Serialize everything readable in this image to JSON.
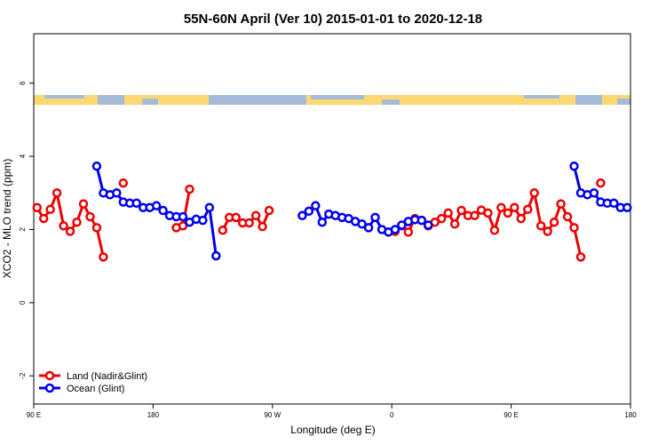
{
  "chart_data": {
    "type": "line",
    "title": "55N-60N April (Ver 10)   2015-01-01 to 2020-12-18",
    "x_label": "Longitude (deg E)",
    "y_label": "XCO2 - MLO trend (ppm)",
    "x": [
      92.5,
      97.5,
      102.5,
      107.5,
      112.5,
      117.5,
      122.5,
      127.5,
      132.5,
      137.5,
      142.5,
      147.5,
      152.5,
      157.5,
      162.5,
      167.5,
      172.5,
      177.5,
      182.5,
      187.5,
      192.5,
      197.5,
      202.5,
      207.5,
      212.5,
      217.5,
      222.5,
      227.5,
      232.5,
      237.5,
      242.5,
      247.5,
      252.5,
      257.5,
      262.5,
      267.5,
      272.5,
      277.5,
      282.5,
      287.5,
      292.5,
      297.5,
      302.5,
      307.5,
      312.5,
      317.5,
      322.5,
      327.5,
      332.5,
      337.5,
      342.5,
      347.5,
      352.5,
      357.5,
      362.5,
      367.5,
      372.5,
      377.5,
      382.5,
      387.5,
      392.5,
      397.5,
      402.5,
      407.5,
      412.5,
      417.5,
      422.5,
      427.5,
      432.5,
      437.5,
      442.5,
      447.5,
      452.5,
      457.5,
      462.5,
      467.5,
      472.5,
      477.5,
      482.5,
      487.5,
      492.5,
      497.5,
      502.5,
      507.5,
      512.5,
      517.5,
      522.5,
      527.5,
      532.5,
      537.5
    ],
    "xlim": [
      90,
      540
    ],
    "xticks": [
      {
        "value": 90,
        "label": "90 E"
      },
      {
        "value": 180,
        "label": "180"
      },
      {
        "value": 270,
        "label": "90 W"
      },
      {
        "value": 360,
        "label": "0"
      },
      {
        "value": 450,
        "label": "90 E"
      },
      {
        "value": 540,
        "label": "180"
      }
    ],
    "ylim": [
      -2.77,
      7.35
    ],
    "yticks": [
      -2,
      0,
      2,
      4,
      6
    ],
    "legend": "bottom-left",
    "series": [
      {
        "name": "Land (Nadir&Glint)",
        "color": "#ee0000",
        "values": [
          2.6,
          2.3,
          2.55,
          3.0,
          2.1,
          1.95,
          2.2,
          2.7,
          2.35,
          2.05,
          1.25,
          null,
          null,
          3.27,
          null,
          null,
          null,
          null,
          null,
          null,
          null,
          2.05,
          2.1,
          3.1,
          null,
          null,
          null,
          null,
          1.98,
          2.33,
          2.33,
          2.18,
          2.18,
          2.38,
          2.08,
          2.52,
          null,
          null,
          null,
          null,
          null,
          null,
          null,
          null,
          null,
          null,
          null,
          null,
          null,
          null,
          null,
          null,
          null,
          1.93,
          1.95,
          2.1,
          1.93,
          2.3,
          2.25,
          2.1,
          2.2,
          2.3,
          2.45,
          2.15,
          2.52,
          2.38,
          2.38,
          2.53,
          2.45,
          1.98,
          2.6,
          2.45,
          2.6,
          2.3,
          2.55,
          3.0,
          2.1,
          1.95,
          2.2,
          2.7,
          2.35,
          2.05,
          1.25,
          null,
          null,
          3.27,
          null,
          null,
          null,
          null
        ]
      },
      {
        "name": "Ocean (Glint)",
        "color": "#0000ee",
        "values": [
          null,
          null,
          null,
          null,
          null,
          null,
          null,
          null,
          null,
          3.73,
          3.0,
          2.95,
          3.0,
          2.75,
          2.72,
          2.72,
          2.6,
          2.6,
          2.65,
          2.52,
          2.38,
          2.35,
          2.35,
          2.2,
          2.28,
          2.25,
          2.6,
          1.28,
          null,
          null,
          null,
          null,
          null,
          null,
          null,
          null,
          null,
          null,
          null,
          null,
          2.38,
          2.5,
          2.65,
          2.2,
          2.42,
          2.38,
          2.33,
          2.3,
          2.22,
          2.15,
          2.05,
          2.33,
          2.0,
          1.93,
          2.0,
          2.12,
          2.22,
          2.27,
          2.25,
          2.12,
          null,
          null,
          null,
          null,
          null,
          null,
          null,
          null,
          null,
          null,
          null,
          null,
          null,
          null,
          null,
          null,
          null,
          null,
          null,
          null,
          null,
          3.73,
          3.0,
          2.95,
          3.0,
          2.75,
          2.72,
          2.72,
          2.6,
          2.6
        ]
      }
    ]
  }
}
